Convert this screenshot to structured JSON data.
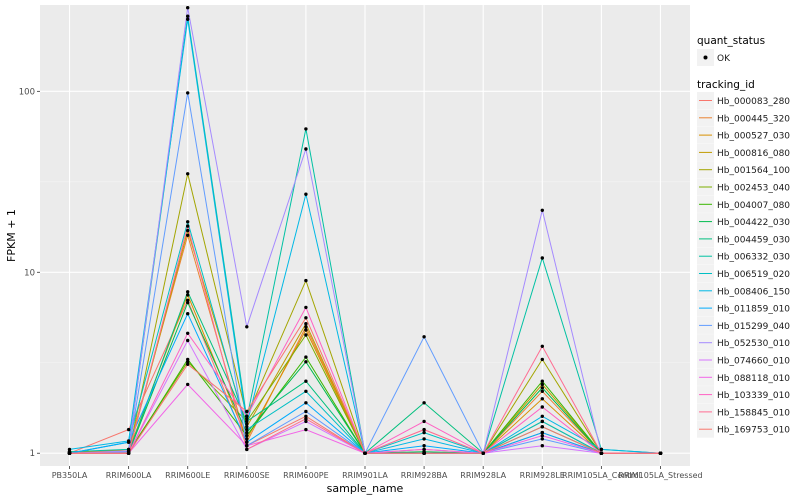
{
  "chart_data": {
    "type": "line",
    "title": "",
    "xlabel": "sample_name",
    "ylabel": "FPKM + 1",
    "y_scale": "log10",
    "ylim": [
      0.85,
      300
    ],
    "y_ticks": [
      1,
      10,
      100
    ],
    "y_tick_labels": [
      "1",
      "10",
      "100"
    ],
    "grid": true,
    "panel_background": "#EBEBEB",
    "categories": [
      "PB350LA",
      "RRIM600LA",
      "RRIM600LE",
      "RRIM600SE",
      "RRIM600PE",
      "RRIM901LA",
      "RRIM928BA",
      "RRIM928LA",
      "RRIM928LE",
      "RRIM105LA_Control",
      "RRIM105LA_Stressed"
    ],
    "legend": {
      "position": "right",
      "quant_title": "quant_status",
      "quant_label": "OK",
      "series_title": "tracking_id"
    },
    "series": [
      {
        "name": "Hb_000083_280",
        "color": "#F8766D",
        "values": [
          1.0,
          1.35,
          7.0,
          1.1,
          1.6,
          1.0,
          1.0,
          1.0,
          1.3,
          1.0,
          1.0
        ]
      },
      {
        "name": "Hb_000445_320",
        "color": "#EA8331",
        "values": [
          1.0,
          1.05,
          16.0,
          1.15,
          5.0,
          1.0,
          1.05,
          1.0,
          2.2,
          1.0,
          1.0
        ]
      },
      {
        "name": "Hb_000527_030",
        "color": "#D89000",
        "values": [
          1.02,
          1.03,
          7.5,
          1.2,
          4.8,
          1.0,
          1.0,
          1.0,
          2.0,
          1.0,
          1.0
        ]
      },
      {
        "name": "Hb_000816_080",
        "color": "#C09B00",
        "values": [
          1.0,
          1.0,
          17.0,
          1.4,
          5.2,
          1.0,
          1.0,
          1.0,
          2.4,
          1.0,
          1.0
        ]
      },
      {
        "name": "Hb_001564_100",
        "color": "#A3A500",
        "values": [
          1.0,
          1.0,
          35.0,
          1.6,
          9.0,
          1.0,
          1.0,
          1.0,
          3.3,
          1.0,
          1.0
        ]
      },
      {
        "name": "Hb_002453_040",
        "color": "#7CAE00",
        "values": [
          1.0,
          1.02,
          3.2,
          1.5,
          4.5,
          1.0,
          1.0,
          1.0,
          1.5,
          1.0,
          1.0
        ]
      },
      {
        "name": "Hb_004007_080",
        "color": "#39B600",
        "values": [
          1.0,
          1.0,
          3.3,
          1.25,
          3.4,
          1.0,
          1.0,
          1.0,
          2.5,
          1.0,
          1.0
        ]
      },
      {
        "name": "Hb_004422_030",
        "color": "#00BB4E",
        "values": [
          1.0,
          1.0,
          6.8,
          1.3,
          3.2,
          1.0,
          1.02,
          1.0,
          2.3,
          1.0,
          1.0
        ]
      },
      {
        "name": "Hb_004459_030",
        "color": "#00BF7D",
        "values": [
          1.0,
          1.0,
          7.8,
          1.5,
          2.5,
          1.0,
          1.9,
          1.0,
          1.4,
          1.0,
          1.0
        ]
      },
      {
        "name": "Hb_006332_030",
        "color": "#00C1A3",
        "values": [
          1.02,
          1.05,
          260.0,
          1.55,
          62.0,
          1.0,
          1.0,
          1.0,
          12.0,
          1.05,
          1.0
        ]
      },
      {
        "name": "Hb_006519_020",
        "color": "#00BFC4",
        "values": [
          1.0,
          1.15,
          19.0,
          1.35,
          2.2,
          1.0,
          1.3,
          1.0,
          1.5,
          1.0,
          1.0
        ]
      },
      {
        "name": "Hb_008406_150",
        "color": "#00B8E5",
        "values": [
          1.05,
          1.17,
          250.0,
          1.45,
          27.0,
          1.0,
          1.2,
          1.0,
          1.6,
          1.05,
          1.0
        ]
      },
      {
        "name": "Hb_011859_010",
        "color": "#00ABFD",
        "values": [
          1.0,
          1.15,
          5.9,
          1.15,
          1.9,
          1.0,
          1.1,
          1.0,
          1.3,
          1.0,
          1.0
        ]
      },
      {
        "name": "Hb_015299_040",
        "color": "#619CFF",
        "values": [
          1.0,
          1.02,
          98.0,
          1.1,
          1.7,
          1.0,
          4.4,
          1.0,
          1.2,
          1.0,
          1.0
        ]
      },
      {
        "name": "Hb_052530_010",
        "color": "#A58AFF",
        "values": [
          1.0,
          1.03,
          290.0,
          5.0,
          48.0,
          1.0,
          1.0,
          1.0,
          22.0,
          1.0,
          1.0
        ]
      },
      {
        "name": "Hb_074660_010",
        "color": "#D575FE",
        "values": [
          1.0,
          1.0,
          4.2,
          1.05,
          1.5,
          1.0,
          1.0,
          1.0,
          1.1,
          1.0,
          1.0
        ]
      },
      {
        "name": "Hb_088118_010",
        "color": "#F265E7",
        "values": [
          1.0,
          1.0,
          2.4,
          1.1,
          1.35,
          1.0,
          1.05,
          1.0,
          1.25,
          1.0,
          1.0
        ]
      },
      {
        "name": "Hb_103339_010",
        "color": "#FF61C3",
        "values": [
          1.0,
          1.0,
          4.6,
          1.6,
          6.4,
          1.0,
          1.5,
          1.0,
          1.8,
          1.0,
          1.0
        ]
      },
      {
        "name": "Hb_158845_010",
        "color": "#FF6C91",
        "values": [
          1.0,
          1.0,
          18.0,
          1.05,
          1.55,
          1.0,
          1.35,
          1.0,
          3.9,
          1.0,
          1.0
        ]
      },
      {
        "name": "Hb_169753_010",
        "color": "#F8766D",
        "values": [
          1.0,
          1.0,
          3.1,
          1.7,
          5.6,
          1.0,
          1.0,
          1.0,
          1.4,
          1.0,
          1.0
        ]
      }
    ]
  }
}
